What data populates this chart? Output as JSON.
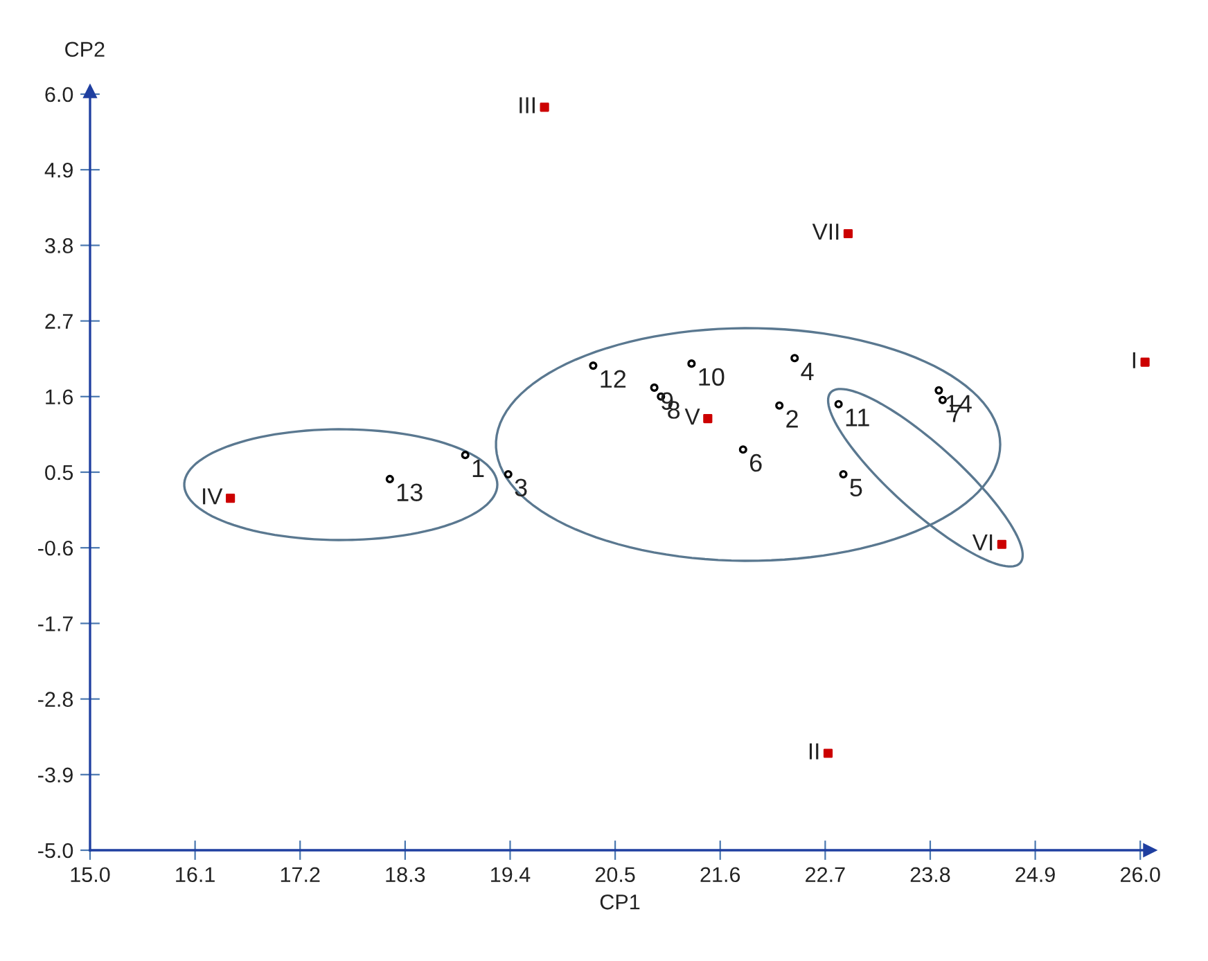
{
  "chart_data": {
    "type": "scatter",
    "xlabel": "CP1",
    "ylabel": "CP2",
    "xlim": [
      15.0,
      26.1
    ],
    "xticks": [
      {
        "value": 15,
        "label": "15.0"
      },
      16.1,
      17.2,
      18.3,
      19.4,
      20.5,
      21.6,
      22.7,
      23.8,
      24.9,
      {
        "value": 26,
        "label": "26.0"
      }
    ],
    "ylim": [
      -5.0,
      6.04
    ],
    "yticks": [
      {
        "value": -5,
        "label": "-5.0"
      },
      -3.9,
      -2.8,
      -1.7,
      -0.6,
      0.5,
      1.6,
      2.7,
      3.8,
      4.9,
      {
        "value": 6,
        "label": "6.0"
      }
    ],
    "grid": false,
    "series": [
      {
        "color": "#000000",
        "marker": "circle",
        "x": [
          18.93,
          22.22,
          19.38,
          22.38,
          22.89,
          21.84,
          23.93,
          20.98,
          20.91,
          21.3,
          22.84,
          20.27,
          18.14,
          23.89
        ],
        "values": [
          0.75,
          1.47,
          0.47,
          2.16,
          0.47,
          0.83,
          1.55,
          1.6,
          1.73,
          2.08,
          1.49,
          2.05,
          0.4,
          1.69
        ]
      },
      {
        "color": "#cc0000",
        "marker": "square",
        "x": [
          26.05,
          22.73,
          19.76,
          16.47,
          21.47,
          24.55,
          22.94
        ],
        "values": [
          2.1,
          -3.59,
          5.81,
          0.12,
          1.28,
          -0.55,
          3.97
        ]
      }
    ],
    "annotations": [
      {
        "text": "1",
        "x": 18.93,
        "y": 0.75
      },
      {
        "text": "2",
        "x": 22.22,
        "y": 1.47
      },
      {
        "text": "3",
        "x": 19.38,
        "y": 0.47
      },
      {
        "text": "4",
        "x": 22.38,
        "y": 2.16
      },
      {
        "text": "5",
        "x": 22.89,
        "y": 0.47
      },
      {
        "text": "6",
        "x": 21.84,
        "y": 0.83
      },
      {
        "text": "7",
        "x": 23.93,
        "y": 1.55
      },
      {
        "text": "8",
        "x": 20.98,
        "y": 1.6
      },
      {
        "text": "9",
        "x": 20.91,
        "y": 1.73
      },
      {
        "text": "10",
        "x": 21.3,
        "y": 2.08
      },
      {
        "text": "11",
        "x": 22.84,
        "y": 1.49
      },
      {
        "text": "12",
        "x": 20.27,
        "y": 2.05
      },
      {
        "text": "13",
        "x": 18.14,
        "y": 0.4
      },
      {
        "text": "14",
        "x": 23.89,
        "y": 1.69
      },
      {
        "text": "I",
        "x": 26.05,
        "y": 2.1
      },
      {
        "text": "II",
        "x": 22.73,
        "y": -3.59
      },
      {
        "text": "III",
        "x": 19.76,
        "y": 5.81
      },
      {
        "text": "IV",
        "x": 16.47,
        "y": 0.12
      },
      {
        "text": "V",
        "x": 21.47,
        "y": 1.28
      },
      {
        "text": "VI",
        "x": 24.55,
        "y": -0.55
      },
      {
        "text": "VII",
        "x": 22.94,
        "y": 3.97
      }
    ]
  }
}
